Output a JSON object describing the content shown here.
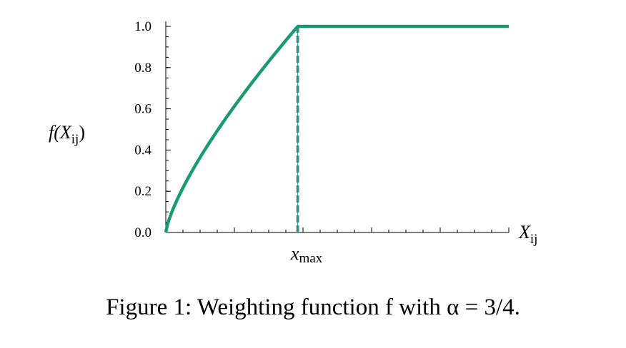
{
  "chart_data": {
    "type": "line",
    "series": [
      {
        "function": "f(X_ij) = (X_ij / x_max)^alpha for X_ij < x_max, else 1",
        "alpha": 0.75,
        "color": "#1a9a72"
      }
    ],
    "xmax_marker": {
      "x": 1,
      "color": "#7b70b4",
      "style": "dashed",
      "label": "x",
      "label_sub": "max"
    },
    "xlim": [
      0,
      2.6
    ],
    "ylim": [
      0,
      1
    ],
    "yticks": [
      "0.0",
      "0.2",
      "0.4",
      "0.6",
      "0.8",
      "1.0"
    ],
    "xlabel": {
      "main": "X",
      "sub": "ij"
    },
    "ylabel": {
      "main": "f(X",
      "sub": "ij",
      "close": ")"
    },
    "grid": false
  },
  "caption": "Figure 1: Weighting function f with α = 3/4."
}
